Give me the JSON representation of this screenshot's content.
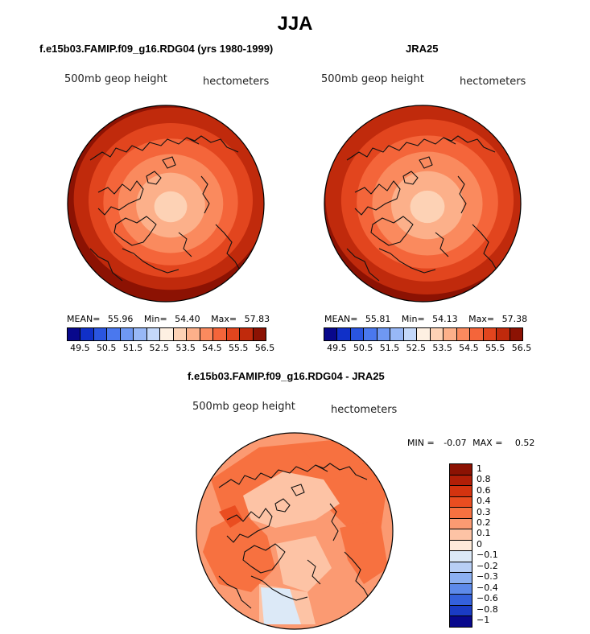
{
  "chart_data": {
    "type": "polar-contour-map",
    "title": "JJA",
    "panels": [
      {
        "id": "model",
        "title": "f.e15b03.FAMIP.f09_g16.RDG04 (yrs 1980-1999)",
        "variable": "500mb geop height",
        "units": "hectometers",
        "stats": {
          "mean_label": "MEAN=",
          "mean": "55.96",
          "min_label": "Min=",
          "min": "54.40",
          "max_label": "Max=",
          "max": "57.83"
        },
        "colorbar_levels": [
          "49.5",
          "50.5",
          "51.5",
          "52.5",
          "53.5",
          "54.5",
          "55.5",
          "56.5"
        ]
      },
      {
        "id": "obs",
        "title": "JRA25",
        "variable": "500mb geop height",
        "units": "hectometers",
        "stats": {
          "mean_label": "MEAN=",
          "mean": "55.81",
          "min_label": "Min=",
          "min": "54.13",
          "max_label": "Max=",
          "max": "57.38"
        },
        "colorbar_levels": [
          "49.5",
          "50.5",
          "51.5",
          "52.5",
          "53.5",
          "54.5",
          "55.5",
          "56.5"
        ]
      },
      {
        "id": "diff",
        "title": "f.e15b03.FAMIP.f09_g16.RDG04 - JRA25",
        "variable": "500mb geop height",
        "units": "hectometers",
        "stats": {
          "min_label": "MIN =",
          "min": "-0.07",
          "max_label": "MAX =",
          "max": "0.52"
        },
        "colorbar_levels": [
          "1",
          "0.8",
          "0.6",
          "0.4",
          "0.3",
          "0.2",
          "0.1",
          "0",
          "−0.1",
          "−0.2",
          "−0.3",
          "−0.4",
          "−0.6",
          "−0.8",
          "−1"
        ]
      }
    ],
    "abs_colors": [
      "#08088c",
      "#1030c8",
      "#2a55e0",
      "#4a78ee",
      "#6f98f3",
      "#98b8f7",
      "#c4d8fa",
      "#fef0e2",
      "#fdd2b5",
      "#fcb08a",
      "#fa8a5e",
      "#f4653a",
      "#e2451e",
      "#c02a0c",
      "#8c1203"
    ],
    "diff_colors": [
      "#8c1203",
      "#b11e07",
      "#d4330f",
      "#ea4d20",
      "#f77140",
      "#fb9a72",
      "#fdc3a5",
      "#feeada",
      "#dce9f7",
      "#b8cff5",
      "#8cb0f1",
      "#5d8aea",
      "#3461dc",
      "#1a3cc4",
      "#08088c"
    ]
  }
}
